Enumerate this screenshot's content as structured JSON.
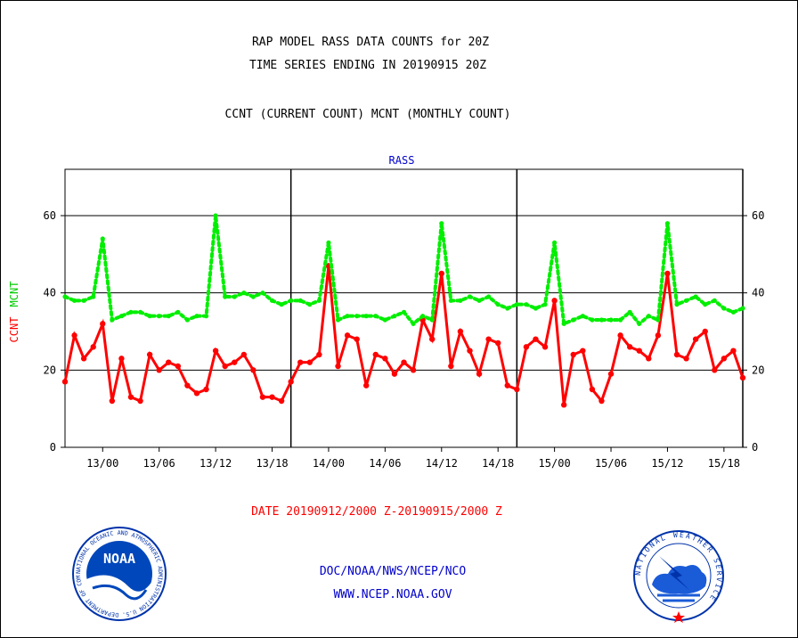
{
  "title_line1": "RAP MODEL RASS DATA COUNTS for 20Z",
  "title_line2": "TIME SERIES ENDING IN 20190915 20Z",
  "subtitle": "CCNT (CURRENT COUNT) MCNT (MONTHLY COUNT)",
  "panel_label": "RASS",
  "ylabel_ccnt": "CCNT",
  "ylabel_mcnt": "MCNT",
  "date_range": "DATE 20190912/2000 Z-20190915/2000 Z",
  "footer_line1": "DOC/NOAA/NWS/NCEP/NCO",
  "footer_line2": "WWW.NCEP.NOAA.GOV",
  "noaa_logo": {
    "text": "NOAA",
    "ring_text": "NATIONAL OCEANIC AND ATMOSPHERIC ADMINISTRATION U.S. DEPARTMENT OF COMMERCE"
  },
  "nws_logo": {
    "ring_text": "NATIONAL WEATHER SERVICE"
  },
  "colors": {
    "ccnt": "#ff0000",
    "mcnt": "#00ee00",
    "footer": "#0000cc",
    "axis": "#000000"
  },
  "chart_data": {
    "type": "line",
    "title": "RAP MODEL RASS DATA COUNTS for 20Z",
    "xlabel": "DATE 20190912/2000 Z-20190915/2000 Z",
    "ylabel": "CCNT  MCNT",
    "ylim": [
      0,
      72
    ],
    "yticks": [
      0,
      20,
      40,
      60
    ],
    "grid": true,
    "x_start_hour": -4,
    "x_end_hour": 68,
    "x": [
      -4,
      -3,
      -2,
      -1,
      0,
      1,
      2,
      3,
      4,
      5,
      6,
      7,
      8,
      9,
      10,
      11,
      12,
      13,
      14,
      15,
      16,
      17,
      18,
      19,
      20,
      21,
      22,
      23,
      24,
      25,
      26,
      27,
      28,
      29,
      30,
      31,
      32,
      33,
      34,
      35,
      36,
      37,
      38,
      39,
      40,
      41,
      42,
      43,
      44,
      45,
      46,
      47,
      48,
      49,
      50,
      51,
      52,
      53,
      54,
      55,
      56,
      57,
      58,
      59,
      60,
      61,
      62,
      63,
      64,
      65,
      66,
      67,
      68
    ],
    "x_ticks": [
      {
        "hour": 0,
        "label": "13/00"
      },
      {
        "hour": 6,
        "label": "13/06"
      },
      {
        "hour": 12,
        "label": "13/12"
      },
      {
        "hour": 18,
        "label": "13/18"
      },
      {
        "hour": 24,
        "label": "14/00"
      },
      {
        "hour": 30,
        "label": "14/06"
      },
      {
        "hour": 36,
        "label": "14/12"
      },
      {
        "hour": 42,
        "label": "14/18"
      },
      {
        "hour": 48,
        "label": "15/00"
      },
      {
        "hour": 54,
        "label": "15/06"
      },
      {
        "hour": 60,
        "label": "15/12"
      },
      {
        "hour": 66,
        "label": "15/18"
      }
    ],
    "day_boundaries": [
      20,
      44,
      68
    ],
    "series": [
      {
        "name": "CCNT",
        "style": "solid",
        "color": "#ff0000",
        "values": [
          17,
          29,
          23,
          26,
          32,
          12,
          23,
          13,
          12,
          24,
          20,
          22,
          21,
          16,
          14,
          15,
          25,
          21,
          22,
          24,
          20,
          13,
          13,
          12,
          17,
          22,
          22,
          24,
          47,
          21,
          29,
          28,
          16,
          24,
          23,
          19,
          22,
          20,
          33,
          28,
          45,
          21,
          30,
          25,
          19,
          28,
          27,
          16,
          15,
          26,
          28,
          26,
          38,
          11,
          24,
          25,
          15,
          12,
          19,
          29,
          26,
          25,
          23,
          29,
          45,
          24,
          23,
          28,
          30,
          20,
          23,
          25,
          18
        ]
      },
      {
        "name": "MCNT",
        "style": "dotted",
        "color": "#00ee00",
        "values": [
          39,
          38,
          38,
          39,
          54,
          33,
          34,
          35,
          35,
          34,
          34,
          34,
          35,
          33,
          34,
          34,
          60,
          39,
          39,
          40,
          39,
          40,
          38,
          37,
          38,
          38,
          37,
          38,
          53,
          33,
          34,
          34,
          34,
          34,
          33,
          34,
          35,
          32,
          34,
          33,
          58,
          38,
          38,
          39,
          38,
          39,
          37,
          36,
          37,
          37,
          36,
          37,
          53,
          32,
          33,
          34,
          33,
          33,
          33,
          33,
          35,
          32,
          34,
          33,
          58,
          37,
          38,
          39,
          37,
          38,
          36,
          35,
          36
        ]
      }
    ]
  }
}
